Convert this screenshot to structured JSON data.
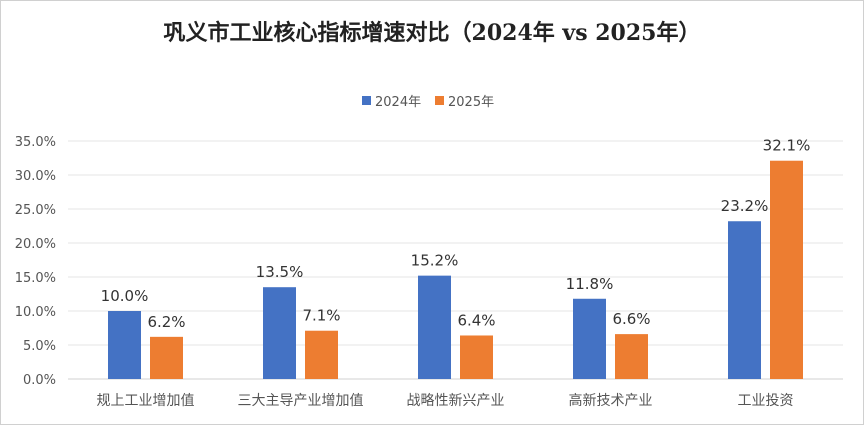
{
  "chart_data": {
    "type": "bar",
    "title": "巩义市工业核心指标增速对比（2024年 vs 2025年）",
    "categories": [
      "规上工业增加值",
      "三大主导产业增加值",
      "战略性新兴产业",
      "高新技术产业",
      "工业投资"
    ],
    "series": [
      {
        "name": "2024年",
        "color": "#4472C4",
        "values": [
          10.0,
          13.5,
          15.2,
          11.8,
          23.2
        ]
      },
      {
        "name": "2025年",
        "color": "#ED7D31",
        "values": [
          6.2,
          7.1,
          6.4,
          6.6,
          32.1
        ]
      }
    ],
    "ylim": [
      0,
      35
    ],
    "yticks": [
      0,
      5,
      10,
      15,
      20,
      25,
      30,
      35
    ],
    "tick_suffix": "%",
    "xlabel": "",
    "ylabel": "",
    "grid": true,
    "legend": "top-center"
  }
}
